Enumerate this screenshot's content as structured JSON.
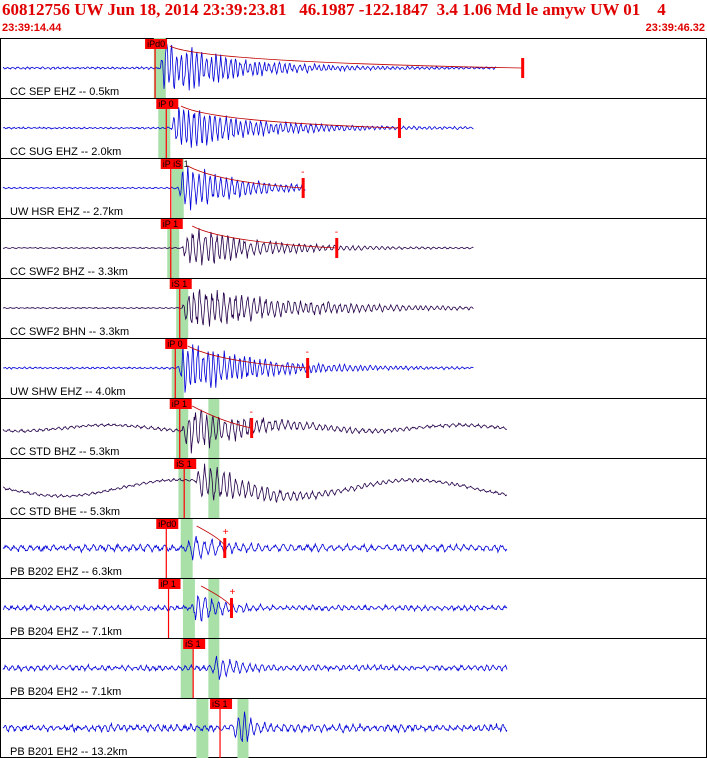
{
  "header": {
    "title": "60812756 UW Jun 18, 2014 23:39:23.81   46.1987 -122.1847  3.4 1.06 Md le amyw UW 01    4",
    "start_time": "23:39:14.44",
    "end_time": "23:39:46.32"
  },
  "colors": {
    "header_text": "#e00000",
    "trace_blue": "#0000d8",
    "trace_dark": "#24004a",
    "pick_box": "#ff0000",
    "window_band": "#a8e0a8",
    "coda_line": "#c00000"
  },
  "traces": [
    {
      "label": "CC SEP EHZ -- 0.5km",
      "pick": "iPd0",
      "pick_sec": 6.7,
      "window_sec": 7.0,
      "onset_sec": 7.0,
      "end_sec": 22.0,
      "amp": 3.5,
      "noise": 0.8,
      "decay": 2.8,
      "period": 0.22,
      "color": "trace_blue",
      "sband": 0,
      "coda_mark_sec": 23.2,
      "coda_mark_label": ""
    },
    {
      "label": "CC SUG EHZ -- 2.0km",
      "pick": "iP 0",
      "pick_sec": 7.2,
      "window_sec": 7.2,
      "onset_sec": 7.5,
      "end_sec": 21.0,
      "amp": 2.8,
      "noise": 0.6,
      "decay": 3.2,
      "period": 0.23,
      "color": "trace_blue",
      "sband": 0,
      "coda_mark_sec": 17.7,
      "coda_mark_label": ""
    },
    {
      "label": "UW HSR EHZ -- 2.7km",
      "pick": "iP iS 1",
      "pick_sec": 7.4,
      "window_sec": 7.8,
      "onset_sec": 7.8,
      "end_sec": 13.5,
      "amp": 3.0,
      "noise": 0.5,
      "decay": 2.4,
      "period": 0.24,
      "color": "trace_blue",
      "sband": 0,
      "coda_mark_sec": 13.4,
      "coda_mark_label": "-"
    },
    {
      "label": "CC SWF2 BHZ -- 3.3km",
      "pick": "iP 1",
      "pick_sec": 7.4,
      "window_sec": 7.6,
      "onset_sec": 8.0,
      "end_sec": 21.0,
      "amp": 2.6,
      "noise": 0.4,
      "decay": 3.0,
      "period": 0.26,
      "color": "trace_dark",
      "sband": 0,
      "coda_mark_sec": 14.9,
      "coda_mark_label": "-"
    },
    {
      "label": "CC SWF2 BHN -- 3.3km",
      "pick": "iS 1",
      "pick_sec": 7.8,
      "window_sec": 8.0,
      "onset_sec": 8.0,
      "end_sec": 21.0,
      "amp": 2.5,
      "noise": 0.4,
      "decay": 4.5,
      "period": 0.26,
      "color": "trace_dark",
      "sband": 0,
      "coda_mark_sec": 0,
      "coda_mark_label": ""
    },
    {
      "label": "UW SHW EHZ -- 4.0km",
      "pick": "iP 0",
      "pick_sec": 7.6,
      "window_sec": 7.8,
      "onset_sec": 7.8,
      "end_sec": 21.0,
      "amp": 3.2,
      "noise": 0.7,
      "decay": 3.0,
      "period": 0.23,
      "color": "trace_blue",
      "sband": 0,
      "coda_mark_sec": 13.6,
      "coda_mark_label": "-"
    },
    {
      "label": "CC STD BHZ -- 5.3km",
      "pick": "iP 1",
      "pick_sec": 7.8,
      "window_sec": 8.0,
      "onset_sec": 8.0,
      "end_sec": 22.5,
      "amp": 2.8,
      "noise": 1.1,
      "decay": 2.5,
      "period": 0.28,
      "color": "trace_dark",
      "sband": 8.9,
      "coda_mark_sec": 11.1,
      "coda_mark_label": "-"
    },
    {
      "label": "CC STD BHE -- 5.3km",
      "pick": "iS 1",
      "pick_sec": 8.0,
      "window_sec": 8.1,
      "onset_sec": 8.6,
      "end_sec": 22.5,
      "amp": 2.6,
      "noise": 1.0,
      "decay": 2.4,
      "period": 0.28,
      "color": "trace_dark",
      "sband": 8.9,
      "coda_mark_sec": 0,
      "coda_mark_label": ""
    },
    {
      "label": "PB B202 EHZ -- 6.3km",
      "pick": "iPd0",
      "pick_sec": 7.2,
      "window_sec": 8.2,
      "onset_sec": 8.2,
      "end_sec": 22.5,
      "amp": 1.4,
      "noise": 2.4,
      "decay": 1.2,
      "period": 0.35,
      "color": "trace_blue",
      "sband": 0,
      "coda_mark_sec": 9.9,
      "coda_mark_label": "+"
    },
    {
      "label": "PB B204 EHZ -- 7.1km",
      "pick": "iP 1",
      "pick_sec": 7.3,
      "window_sec": 8.3,
      "onset_sec": 8.4,
      "end_sec": 22.5,
      "amp": 2.0,
      "noise": 1.8,
      "decay": 1.0,
      "period": 0.3,
      "color": "trace_blue",
      "sband": 8.9,
      "coda_mark_sec": 10.2,
      "coda_mark_label": "+"
    },
    {
      "label": "PB B204 EH2 -- 7.1km",
      "pick": "iS 1",
      "pick_sec": 8.4,
      "window_sec": 8.2,
      "onset_sec": 9.3,
      "end_sec": 22.5,
      "amp": 1.6,
      "noise": 2.0,
      "decay": 0.9,
      "period": 0.28,
      "color": "trace_blue",
      "sband": 8.9,
      "coda_mark_sec": 0,
      "coda_mark_label": ""
    },
    {
      "label": "PB B201 EH2 -- 13.2km",
      "pick": "iS 1",
      "pick_sec": 9.6,
      "window_sec": 8.9,
      "onset_sec": 10.3,
      "end_sec": 22.5,
      "amp": 3.5,
      "noise": 2.6,
      "decay": 0.5,
      "period": 0.3,
      "color": "trace_blue",
      "sband": 10.2,
      "coda_mark_sec": 0,
      "coda_mark_label": ""
    }
  ]
}
